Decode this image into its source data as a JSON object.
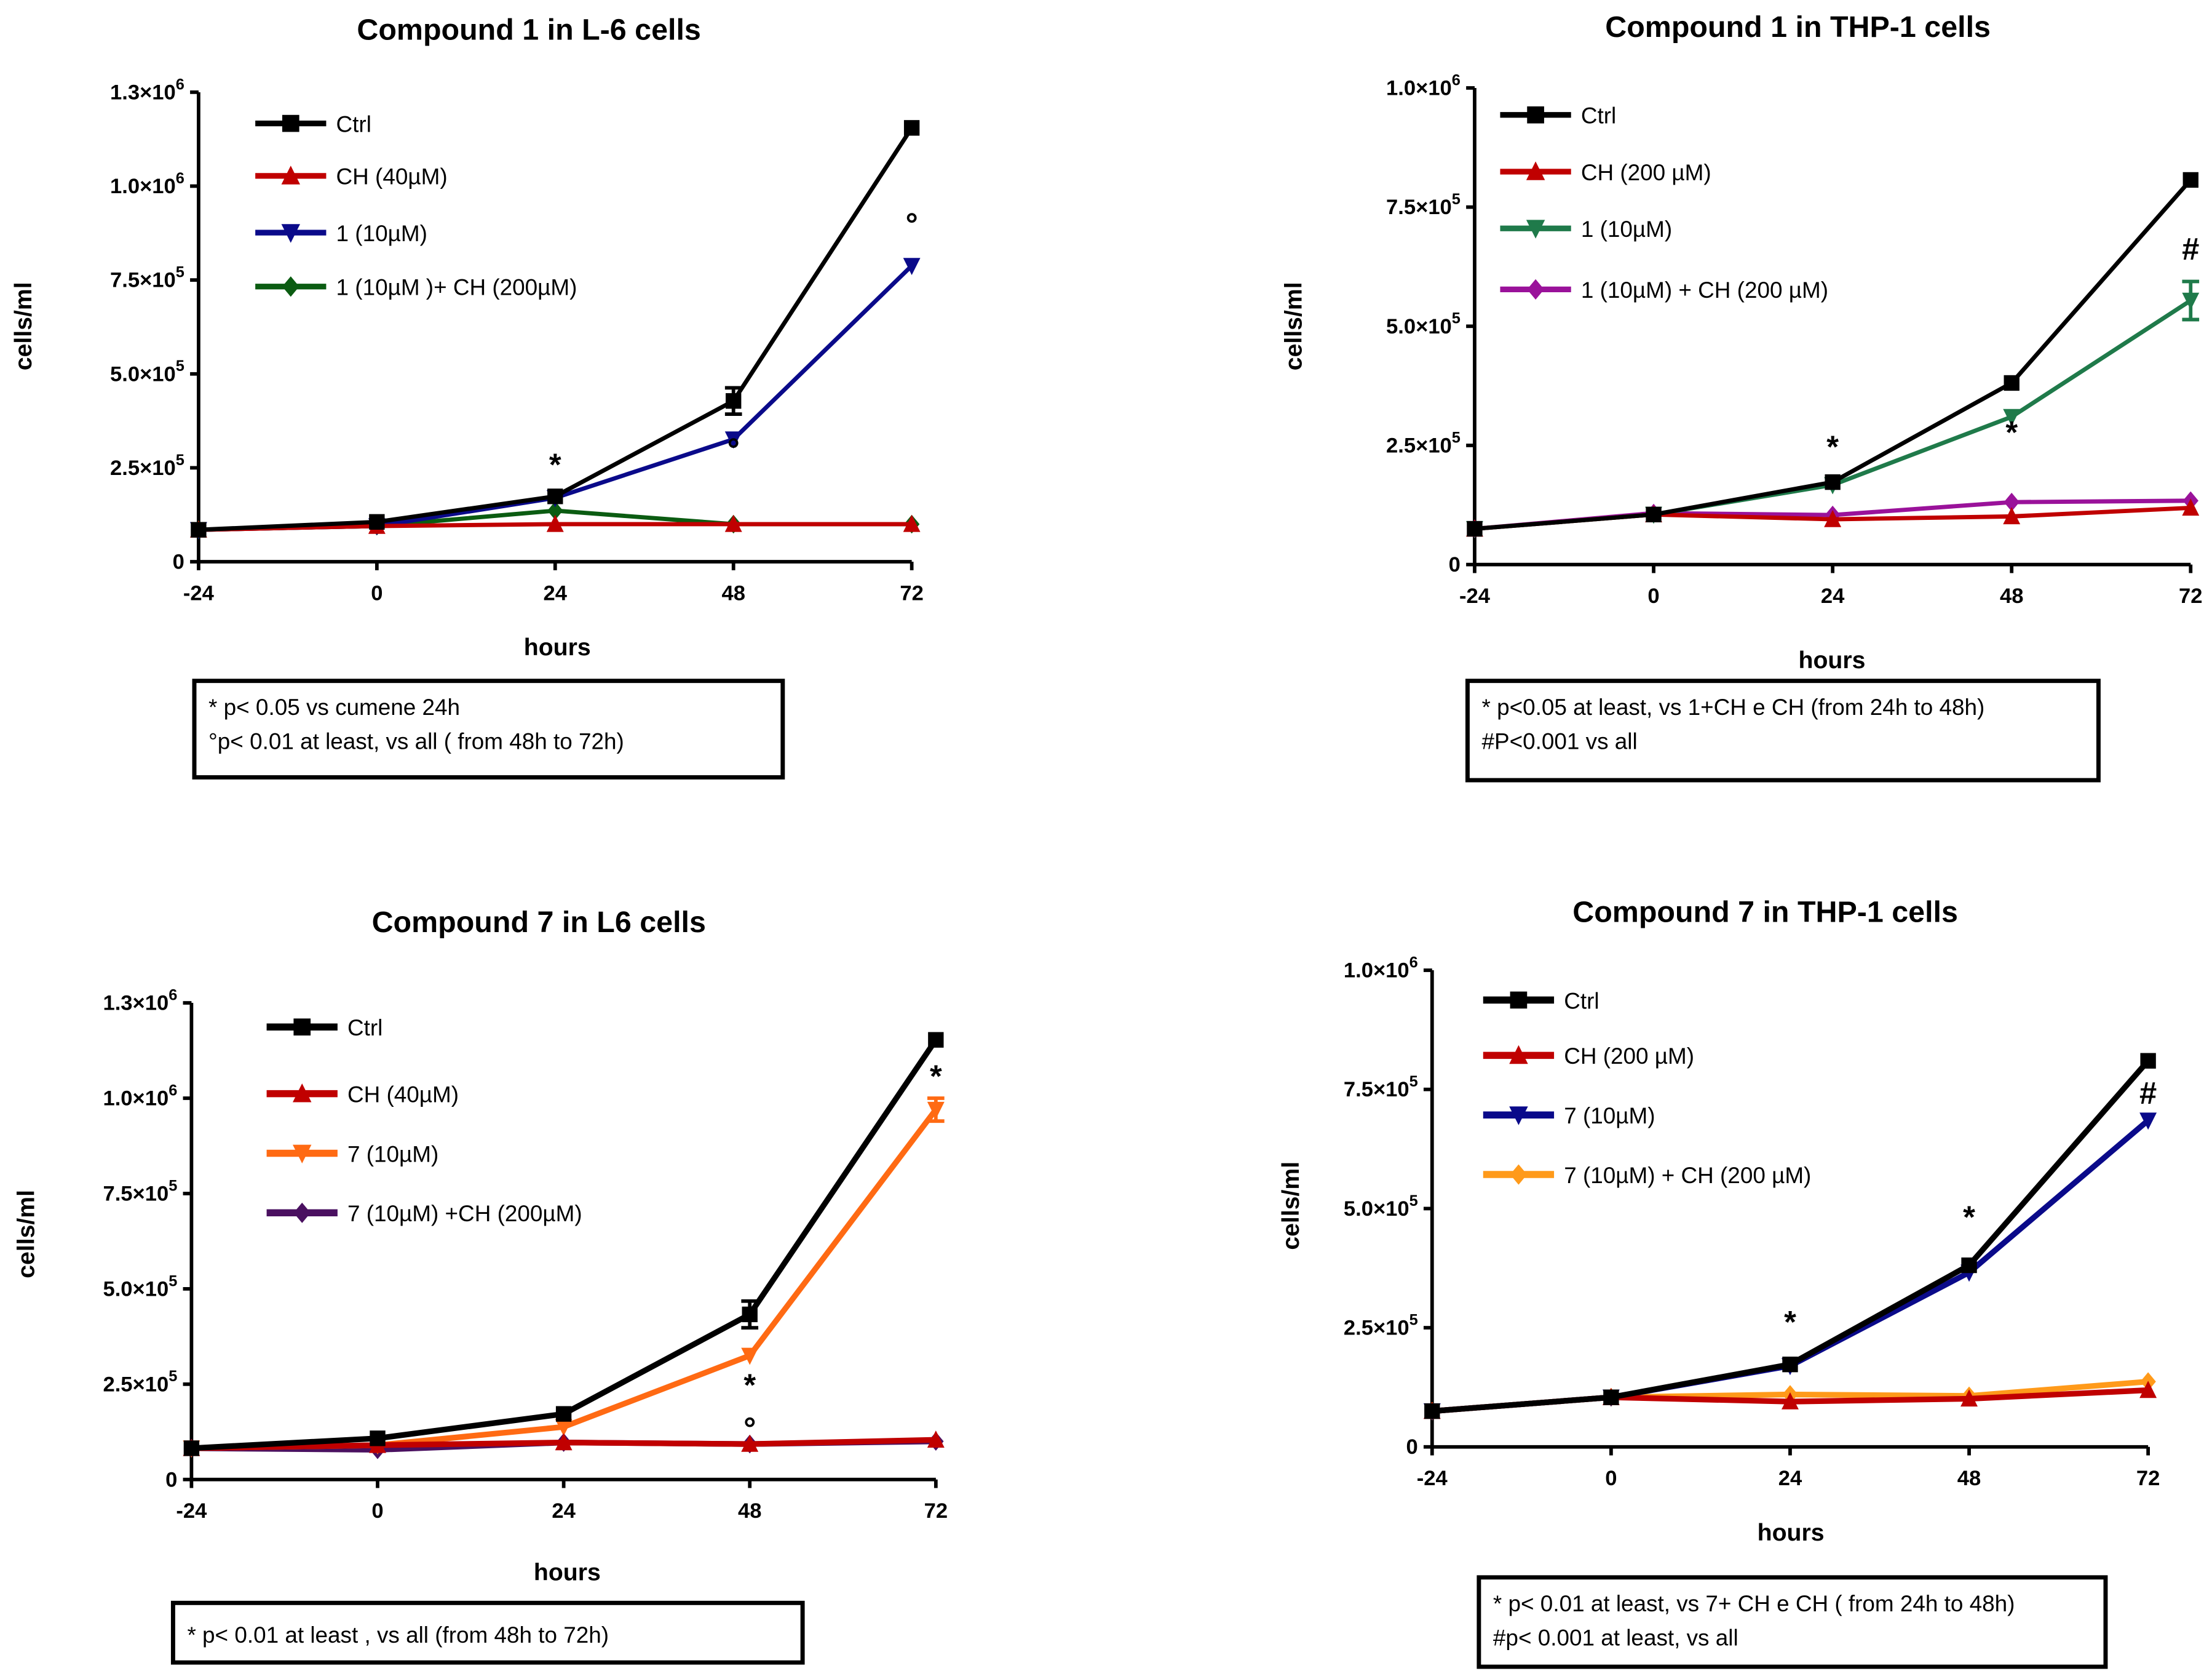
{
  "chart_data": [
    {
      "type": "line",
      "title": "Compound 1 in L-6 cells",
      "xlabel": "hours",
      "ylabel": "cells/ml",
      "x": [
        -24,
        0,
        24,
        48,
        72
      ],
      "x_ticks": [
        "-24",
        "0",
        "24",
        "48",
        "72"
      ],
      "ylim": [
        0,
        1250000
      ],
      "y_ticks": [
        {
          "value": 0,
          "label": "0",
          "exp": ""
        },
        {
          "value": 250000,
          "label": "2.5×10",
          "exp": "5"
        },
        {
          "value": 500000,
          "label": "5.0×10",
          "exp": "5"
        },
        {
          "value": 750000,
          "label": "7.5×10",
          "exp": "5"
        },
        {
          "value": 1000000,
          "label": "1.0×10",
          "exp": "6"
        },
        {
          "value": 1250000,
          "label": "1.3×10",
          "exp": "6"
        }
      ],
      "legend_position": "top-left",
      "series": [
        {
          "name": "Ctrl",
          "color": "#000000",
          "marker": "square",
          "values": [
            85000,
            106000,
            174000,
            428000,
            1155000
          ],
          "errors": [
            0,
            0,
            0,
            35000,
            0
          ]
        },
        {
          "name": "CH (40µM)",
          "color": "#c00000",
          "marker": "triangle-up",
          "values": [
            85000,
            95000,
            100000,
            100000,
            100000
          ]
        },
        {
          "name": "1 (10µM)",
          "color": "#0a0a8a",
          "marker": "triangle-down",
          "values": [
            85000,
            95000,
            170000,
            326000,
            788000
          ]
        },
        {
          "name": "1 (10µM )+ CH (200µM)",
          "color": "#0b5c12",
          "marker": "diamond",
          "values": [
            85000,
            95000,
            136000,
            100000,
            100000
          ]
        }
      ],
      "annotations": [
        {
          "x": 24,
          "text": "*",
          "y": 230000
        },
        {
          "x": 48,
          "text": "°",
          "y": 270000
        },
        {
          "x": 72,
          "text": "°",
          "y": 870000
        }
      ],
      "notes": [
        "* p< 0.05 vs cumene 24h",
        "°p< 0.01 at least, vs all ( from 48h to 72h)"
      ]
    },
    {
      "type": "line",
      "title": "Compound 1 in THP-1 cells",
      "xlabel": "hours",
      "ylabel": "cells/ml",
      "x": [
        -24,
        0,
        24,
        48,
        72
      ],
      "x_ticks": [
        "-24",
        "0",
        "24",
        "48",
        "72"
      ],
      "ylim": [
        0,
        1000000
      ],
      "y_ticks": [
        {
          "value": 0,
          "label": "0",
          "exp": ""
        },
        {
          "value": 250000,
          "label": "2.5×10",
          "exp": "5"
        },
        {
          "value": 500000,
          "label": "5.0×10",
          "exp": "5"
        },
        {
          "value": 750000,
          "label": "7.5×10",
          "exp": "5"
        },
        {
          "value": 1000000,
          "label": "1.0×10",
          "exp": "6"
        }
      ],
      "legend_position": "top-left",
      "series": [
        {
          "name": "Ctrl",
          "color": "#000000",
          "marker": "square",
          "values": [
            75000,
            105000,
            173000,
            381000,
            807000
          ]
        },
        {
          "name": "CH (200 µM)",
          "color": "#c00000",
          "marker": "triangle-up",
          "values": [
            75000,
            105000,
            95000,
            101000,
            119000
          ]
        },
        {
          "name": "1 (10µM)",
          "color": "#1f7a4a",
          "marker": "triangle-down",
          "values": [
            75000,
            105000,
            167000,
            310000,
            554000
          ],
          "errors": [
            0,
            0,
            0,
            0,
            40000
          ]
        },
        {
          "name": "1 (10µM) + CH (200 µM)",
          "color": "#9a129a",
          "marker": "diamond",
          "values": [
            75000,
            108000,
            104000,
            131000,
            134000
          ]
        }
      ],
      "annotations": [
        {
          "x": 24,
          "text": "*",
          "y": 225000
        },
        {
          "x": 48,
          "text": "*",
          "y": 255000
        },
        {
          "x": 72,
          "text": "#",
          "y": 640000
        }
      ],
      "notes": [
        "* p<0.05 at least,  vs 1+CH e CH (from 24h to 48h)",
        "#P<0.001 vs all"
      ]
    },
    {
      "type": "line",
      "title": "Compound 7 in L6 cells",
      "xlabel": "hours",
      "ylabel": "cells/ml",
      "x": [
        -24,
        0,
        24,
        48,
        72
      ],
      "x_ticks": [
        "-24",
        "0",
        "24",
        "48",
        "72"
      ],
      "ylim": [
        0,
        1250000
      ],
      "y_ticks": [
        {
          "value": 0,
          "label": "0",
          "exp": ""
        },
        {
          "value": 250000,
          "label": "2.5×10",
          "exp": "5"
        },
        {
          "value": 500000,
          "label": "5.0×10",
          "exp": "5"
        },
        {
          "value": 750000,
          "label": "7.5×10",
          "exp": "5"
        },
        {
          "value": 1000000,
          "label": "1.0×10",
          "exp": "6"
        },
        {
          "value": 1250000,
          "label": "1.3×10",
          "exp": "6"
        }
      ],
      "legend_position": "top-left",
      "series": [
        {
          "name": "Ctrl",
          "color": "#000000",
          "marker": "square",
          "values": [
            82000,
            108000,
            172000,
            433000,
            1153000
          ],
          "errors": [
            0,
            0,
            0,
            35000,
            0
          ]
        },
        {
          "name": "CH (40µM)",
          "color": "#c00000",
          "marker": "triangle-up",
          "values": [
            82000,
            90000,
            97000,
            93000,
            104000
          ]
        },
        {
          "name": "7 (10µM)",
          "color": "#ff6a13",
          "marker": "triangle-down",
          "values": [
            82000,
            90000,
            138000,
            325000,
            970000
          ],
          "errors": [
            0,
            0,
            0,
            0,
            30000
          ]
        },
        {
          "name": "7 (10µM) +CH (200µM)",
          "color": "#4a1060",
          "marker": "diamond",
          "values": [
            82000,
            78000,
            97000,
            93000,
            100000
          ]
        }
      ],
      "annotations": [
        {
          "x": 48,
          "text": "*",
          "y": 220000
        },
        {
          "x": 48,
          "text": "°",
          "y": 105000
        },
        {
          "x": 72,
          "text": "*",
          "y": 1030000
        }
      ],
      "notes": [
        "* p< 0.01 at least , vs all (from 48h to 72h)"
      ]
    },
    {
      "type": "line",
      "title": "Compound 7 in THP-1 cells",
      "xlabel": "hours",
      "ylabel": "cells/ml",
      "x": [
        -24,
        0,
        24,
        48,
        72
      ],
      "x_ticks": [
        "-24",
        "0",
        "24",
        "48",
        "72"
      ],
      "ylim": [
        0,
        1000000
      ],
      "y_ticks": [
        {
          "value": 0,
          "label": "0",
          "exp": ""
        },
        {
          "value": 250000,
          "label": "2.5×10",
          "exp": "5"
        },
        {
          "value": 500000,
          "label": "5.0×10",
          "exp": "5"
        },
        {
          "value": 750000,
          "label": "7.5×10",
          "exp": "5"
        },
        {
          "value": 1000000,
          "label": "1.0×10",
          "exp": "6"
        }
      ],
      "legend_position": "top-left",
      "series": [
        {
          "name": "Ctrl",
          "color": "#000000",
          "marker": "square",
          "values": [
            75000,
            104000,
            173000,
            381000,
            810000
          ]
        },
        {
          "name": "CH (200 µM)",
          "color": "#c00000",
          "marker": "triangle-up",
          "values": [
            75000,
            104000,
            95000,
            101000,
            119000
          ]
        },
        {
          "name": "7 (10µM)",
          "color": "#0a0a8a",
          "marker": "triangle-down",
          "values": [
            75000,
            104000,
            170000,
            366000,
            685000
          ]
        },
        {
          "name": "7 (10µM) + CH (200 µM)",
          "color": "#ff9a1a",
          "marker": "diamond",
          "values": [
            75000,
            104000,
            110000,
            107000,
            137000
          ]
        }
      ],
      "annotations": [
        {
          "x": 24,
          "text": "*",
          "y": 240000
        },
        {
          "x": 48,
          "text": "*",
          "y": 460000
        },
        {
          "x": 72,
          "text": "#",
          "y": 720000
        }
      ],
      "notes": [
        "* p< 0.01 at least, vs 7+ CH e CH ( from 24h to 48h)",
        "#p< 0.001 at least, vs all"
      ]
    }
  ]
}
